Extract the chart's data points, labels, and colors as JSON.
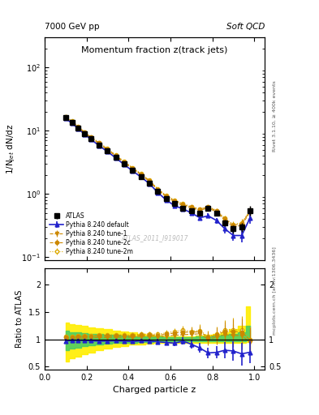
{
  "title_main": "Momentum fraction z(track jets)",
  "header_left": "7000 GeV pp",
  "header_right": "Soft QCD",
  "ylabel_main": "1/N$_{jet}$ dN/dz",
  "ylabel_ratio": "Ratio to ATLAS",
  "xlabel": "Charged particle z",
  "watermark": "ATLAS_2011_I919017",
  "right_label_top": "Rivet 3.1.10, ≥ 400k events",
  "right_label_bot": "mcplots.cern.ch [arXiv:1306.3436]",
  "z_centers": [
    0.1,
    0.13,
    0.16,
    0.19,
    0.22,
    0.26,
    0.3,
    0.34,
    0.38,
    0.42,
    0.46,
    0.5,
    0.54,
    0.58,
    0.62,
    0.66,
    0.7,
    0.74,
    0.78,
    0.82,
    0.86,
    0.9,
    0.94,
    0.98
  ],
  "atlas_y": [
    16.0,
    13.5,
    11.0,
    9.0,
    7.5,
    6.0,
    4.8,
    3.8,
    3.0,
    2.4,
    1.9,
    1.5,
    1.1,
    0.85,
    0.7,
    0.6,
    0.55,
    0.5,
    0.6,
    0.5,
    0.35,
    0.28,
    0.3,
    0.55
  ],
  "atlas_yerr": [
    0.5,
    0.4,
    0.3,
    0.25,
    0.2,
    0.15,
    0.12,
    0.1,
    0.08,
    0.07,
    0.06,
    0.05,
    0.04,
    0.03,
    0.03,
    0.03,
    0.03,
    0.04,
    0.05,
    0.05,
    0.04,
    0.04,
    0.05,
    0.1
  ],
  "py_default_y": [
    15.5,
    13.2,
    10.8,
    8.8,
    7.3,
    5.8,
    4.65,
    3.7,
    2.9,
    2.3,
    1.85,
    1.45,
    1.05,
    0.8,
    0.65,
    0.58,
    0.5,
    0.42,
    0.45,
    0.38,
    0.28,
    0.22,
    0.22,
    0.42
  ],
  "py_default_yerr": [
    0.3,
    0.25,
    0.2,
    0.17,
    0.14,
    0.12,
    0.1,
    0.08,
    0.07,
    0.06,
    0.05,
    0.04,
    0.04,
    0.03,
    0.03,
    0.03,
    0.03,
    0.03,
    0.04,
    0.04,
    0.04,
    0.04,
    0.05,
    0.08
  ],
  "py_tune1_y": [
    16.2,
    13.7,
    11.2,
    9.2,
    7.7,
    6.2,
    4.95,
    3.95,
    3.1,
    2.5,
    2.0,
    1.58,
    1.15,
    0.9,
    0.75,
    0.65,
    0.6,
    0.55,
    0.6,
    0.52,
    0.38,
    0.3,
    0.32,
    0.52
  ],
  "py_tune1_yerr": [
    0.3,
    0.25,
    0.2,
    0.17,
    0.14,
    0.12,
    0.1,
    0.08,
    0.07,
    0.06,
    0.05,
    0.04,
    0.04,
    0.03,
    0.03,
    0.03,
    0.03,
    0.03,
    0.04,
    0.04,
    0.04,
    0.04,
    0.05,
    0.08
  ],
  "py_tune2c_y": [
    16.5,
    14.0,
    11.5,
    9.5,
    7.9,
    6.4,
    5.1,
    4.05,
    3.2,
    2.55,
    2.05,
    1.62,
    1.18,
    0.93,
    0.78,
    0.68,
    0.62,
    0.57,
    0.62,
    0.54,
    0.4,
    0.32,
    0.34,
    0.54
  ],
  "py_tune2c_yerr": [
    0.3,
    0.25,
    0.2,
    0.17,
    0.14,
    0.12,
    0.1,
    0.08,
    0.07,
    0.06,
    0.05,
    0.04,
    0.04,
    0.03,
    0.03,
    0.03,
    0.03,
    0.03,
    0.04,
    0.04,
    0.04,
    0.04,
    0.05,
    0.08
  ],
  "py_tune2m_y": [
    16.8,
    14.2,
    11.7,
    9.6,
    8.0,
    6.5,
    5.2,
    4.1,
    3.25,
    2.6,
    2.08,
    1.65,
    1.2,
    0.95,
    0.8,
    0.7,
    0.63,
    0.58,
    0.63,
    0.55,
    0.41,
    0.33,
    0.35,
    0.55
  ],
  "py_tune2m_yerr": [
    0.3,
    0.25,
    0.2,
    0.17,
    0.14,
    0.12,
    0.1,
    0.08,
    0.07,
    0.06,
    0.05,
    0.04,
    0.04,
    0.03,
    0.03,
    0.03,
    0.03,
    0.03,
    0.04,
    0.04,
    0.04,
    0.04,
    0.05,
    0.08
  ],
  "color_atlas": "#000000",
  "color_default": "#2222cc",
  "color_orange": "#cc8800",
  "color_tune2m": "#ddaa00",
  "ylim_main": [
    0.09,
    300
  ],
  "ylim_ratio": [
    0.45,
    2.3
  ],
  "xlim": [
    0.0,
    1.05
  ],
  "band_yellow_lo": [
    0.6,
    0.65,
    0.68,
    0.72,
    0.76,
    0.8,
    0.83,
    0.86,
    0.88,
    0.9,
    0.91,
    0.92,
    0.93,
    0.93,
    0.93,
    0.93,
    0.93,
    0.93,
    0.93,
    0.93,
    0.93,
    0.93,
    0.93,
    0.95
  ],
  "band_yellow_hi": [
    1.3,
    1.28,
    1.26,
    1.24,
    1.22,
    1.2,
    1.18,
    1.16,
    1.14,
    1.12,
    1.1,
    1.08,
    1.07,
    1.06,
    1.06,
    1.06,
    1.06,
    1.07,
    1.08,
    1.1,
    1.13,
    1.18,
    1.25,
    1.6
  ],
  "band_green_lo": [
    0.8,
    0.83,
    0.85,
    0.87,
    0.89,
    0.91,
    0.92,
    0.93,
    0.94,
    0.94,
    0.95,
    0.95,
    0.96,
    0.96,
    0.96,
    0.96,
    0.96,
    0.96,
    0.96,
    0.96,
    0.96,
    0.96,
    0.97,
    0.98
  ],
  "band_green_hi": [
    1.15,
    1.13,
    1.12,
    1.11,
    1.1,
    1.09,
    1.08,
    1.08,
    1.07,
    1.06,
    1.06,
    1.05,
    1.05,
    1.04,
    1.04,
    1.04,
    1.04,
    1.05,
    1.06,
    1.07,
    1.08,
    1.1,
    1.13,
    1.25
  ]
}
